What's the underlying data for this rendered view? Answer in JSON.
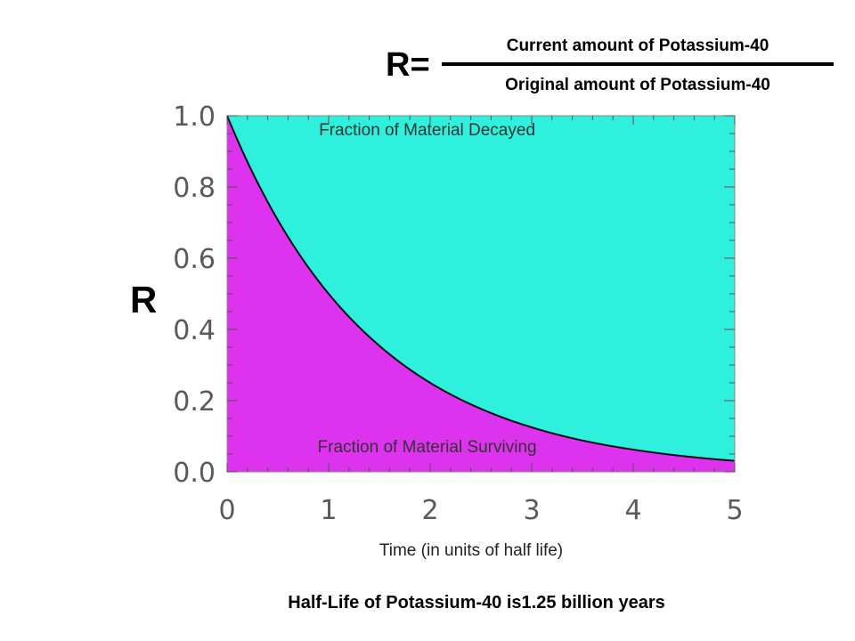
{
  "formula": {
    "lhs": "R=",
    "numerator": "Current amount of Potassium-40",
    "denominator": "Original amount of Potassium-40"
  },
  "footnote": "Half-Life of Potassium-40 is1.25 billion years",
  "chart_data": {
    "type": "area",
    "xlabel": "Time (in units of half life)",
    "ylabel": "R",
    "xlim": [
      0,
      5
    ],
    "ylim": [
      0,
      1.0
    ],
    "x_ticks": [
      "0",
      "1",
      "2",
      "3",
      "4",
      "5"
    ],
    "y_ticks": [
      "0.0",
      "0.2",
      "0.4",
      "0.6",
      "0.8",
      "1.0"
    ],
    "curve": {
      "x": [
        0,
        0.5,
        1,
        1.5,
        2,
        2.5,
        3,
        3.5,
        4,
        4.5,
        5
      ],
      "y": [
        1.0,
        0.707,
        0.5,
        0.354,
        0.25,
        0.177,
        0.125,
        0.088,
        0.0625,
        0.044,
        0.031
      ]
    },
    "regions": [
      {
        "label": "Fraction of Material Decayed",
        "color": "#2ef0dc"
      },
      {
        "label": "Fraction of Material Surviving",
        "color": "#dd33ee"
      }
    ],
    "grid": false
  }
}
